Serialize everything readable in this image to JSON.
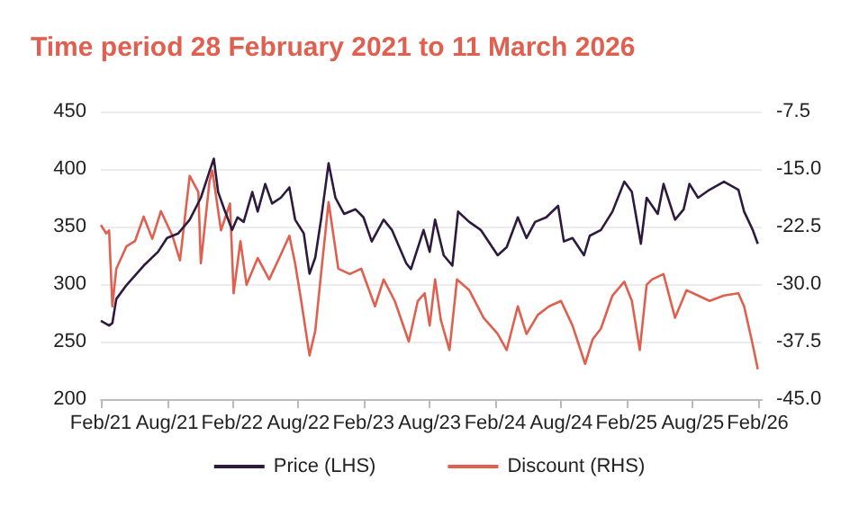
{
  "chart_data": {
    "type": "line",
    "title": "Time period 28 February 2021 to 11 March 2026",
    "xlim": [
      "2021-02-28",
      "2026-03-11"
    ],
    "xticks": [
      {
        "value": "2021-02-28",
        "label": "Feb/21"
      },
      {
        "value": "2021-08-31",
        "label": "Aug/21"
      },
      {
        "value": "2022-02-28",
        "label": "Feb/22"
      },
      {
        "value": "2022-08-31",
        "label": "Aug/22"
      },
      {
        "value": "2023-02-28",
        "label": "Feb/23"
      },
      {
        "value": "2023-08-31",
        "label": "Aug/23"
      },
      {
        "value": "2024-02-29",
        "label": "Feb/24"
      },
      {
        "value": "2024-08-31",
        "label": "Aug/24"
      },
      {
        "value": "2025-02-28",
        "label": "Feb/25"
      },
      {
        "value": "2025-08-31",
        "label": "Aug/25"
      },
      {
        "value": "2026-02-28",
        "label": "Feb/26"
      }
    ],
    "ylim": [
      200,
      450
    ],
    "yticks": [
      200,
      250,
      300,
      350,
      400,
      450
    ],
    "y2lim": [
      -45,
      -7.5
    ],
    "y2ticks": [
      {
        "value": -45,
        "label": "-45.0"
      },
      {
        "value": -37.5,
        "label": "-37.5"
      },
      {
        "value": -30,
        "label": "-30.0"
      },
      {
        "value": -22.5,
        "label": "-22.5"
      },
      {
        "value": -15,
        "label": "-15.0"
      },
      {
        "value": -7.5,
        "label": "-7.5"
      }
    ],
    "grid": "y",
    "legend": "bottom",
    "marker": "none",
    "line_style": "solid",
    "series": [
      {
        "name": "Price (LHS)",
        "color": "#2e1a3e",
        "x": [
          "2021-02-28",
          "2021-03-23",
          "2021-04-01",
          "2021-04-12",
          "2021-05-10",
          "2021-06-27",
          "2021-08-06",
          "2021-08-31",
          "2021-10-01",
          "2021-11-02",
          "2021-12-03",
          "2021-12-27",
          "2022-01-08",
          "2022-01-20",
          "2022-02-06",
          "2022-02-28",
          "2022-03-15",
          "2022-04-01",
          "2022-04-25",
          "2022-05-10",
          "2022-05-31",
          "2022-06-19",
          "2022-07-13",
          "2022-08-06",
          "2022-08-22",
          "2022-09-15",
          "2022-10-01",
          "2022-10-17",
          "2022-11-02",
          "2022-11-23",
          "2022-12-12",
          "2023-01-05",
          "2023-02-06",
          "2023-02-28",
          "2023-03-23",
          "2023-04-25",
          "2023-05-18",
          "2023-06-27",
          "2023-07-10",
          "2023-08-14",
          "2023-08-31",
          "2023-09-15",
          "2023-10-09",
          "2023-11-02",
          "2023-11-18",
          "2023-12-19",
          "2024-01-20",
          "2024-03-07",
          "2024-04-01",
          "2024-05-02",
          "2024-05-26",
          "2024-06-19",
          "2024-07-20",
          "2024-08-22",
          "2024-09-07",
          "2024-10-01",
          "2024-11-02",
          "2024-11-18",
          "2024-12-19",
          "2025-01-20",
          "2025-02-22",
          "2025-03-15",
          "2025-04-09",
          "2025-04-25",
          "2025-05-26",
          "2025-06-11",
          "2025-07-13",
          "2025-08-06",
          "2025-08-22",
          "2025-09-15",
          "2025-10-17",
          "2025-11-26",
          "2026-01-05",
          "2026-01-21",
          "2026-02-14",
          "2026-02-28"
        ],
        "values": [
          268,
          264,
          266,
          287,
          299,
          316,
          328,
          340,
          344,
          356,
          375,
          398,
          409,
          380,
          365,
          347,
          358,
          354,
          380,
          363,
          387,
          370,
          375,
          384,
          356,
          344,
          309,
          323,
          356,
          405,
          375,
          361,
          365,
          358,
          337,
          356,
          347,
          318,
          313,
          347,
          328,
          356,
          325,
          316,
          363,
          354,
          347,
          325,
          332,
          358,
          340,
          354,
          358,
          368,
          337,
          340,
          325,
          342,
          347,
          363,
          389,
          380,
          335,
          375,
          361,
          387,
          356,
          365,
          387,
          375,
          382,
          389,
          382,
          363,
          347,
          335
        ]
      },
      {
        "name": "Discount (RHS)",
        "color": "#e0604f",
        "axis": "y2",
        "x": [
          "2021-02-28",
          "2021-03-15",
          "2021-03-23",
          "2021-04-01",
          "2021-04-12",
          "2021-05-10",
          "2021-06-03",
          "2021-06-27",
          "2021-07-21",
          "2021-08-14",
          "2021-09-15",
          "2021-10-06",
          "2021-11-02",
          "2021-11-26",
          "2021-12-03",
          "2021-12-27",
          "2022-01-04",
          "2022-01-28",
          "2022-02-22",
          "2022-03-04",
          "2022-03-23",
          "2022-04-09",
          "2022-05-10",
          "2022-06-11",
          "2022-07-13",
          "2022-08-06",
          "2022-08-22",
          "2022-09-07",
          "2022-10-01",
          "2022-10-17",
          "2022-11-02",
          "2022-11-23",
          "2022-12-20",
          "2023-01-21",
          "2023-02-22",
          "2023-04-01",
          "2023-04-25",
          "2023-05-26",
          "2023-07-04",
          "2023-07-29",
          "2023-08-17",
          "2023-08-31",
          "2023-09-15",
          "2023-10-01",
          "2023-10-25",
          "2023-11-15",
          "2023-12-19",
          "2024-01-28",
          "2024-03-07",
          "2024-04-01",
          "2024-05-02",
          "2024-05-26",
          "2024-06-27",
          "2024-07-28",
          "2024-08-30",
          "2024-10-01",
          "2024-11-05",
          "2024-11-26",
          "2024-12-19",
          "2025-01-20",
          "2025-02-22",
          "2025-03-15",
          "2025-04-06",
          "2025-04-25",
          "2025-05-10",
          "2025-06-11",
          "2025-07-13",
          "2025-08-14",
          "2025-09-15",
          "2025-10-17",
          "2025-11-26",
          "2026-01-05",
          "2026-01-21",
          "2026-02-14",
          "2026-02-28"
        ],
        "values": [
          -22.3,
          -23.4,
          -23.0,
          -32.9,
          -28.0,
          -25.1,
          -24.4,
          -21.2,
          -24.1,
          -20.5,
          -23.7,
          -26.9,
          -15.9,
          -18.0,
          -27.3,
          -16.6,
          -15.2,
          -23.0,
          -19.5,
          -31.2,
          -24.4,
          -30.1,
          -26.6,
          -29.4,
          -26.2,
          -23.7,
          -27.3,
          -31.9,
          -39.3,
          -36.1,
          -28.7,
          -19.3,
          -28.0,
          -28.7,
          -28.0,
          -32.9,
          -29.4,
          -32.2,
          -37.5,
          -32.2,
          -31.2,
          -35.4,
          -29.4,
          -34.7,
          -38.6,
          -29.4,
          -30.8,
          -34.4,
          -36.5,
          -38.6,
          -32.9,
          -36.5,
          -34.0,
          -32.9,
          -32.2,
          -35.4,
          -40.4,
          -37.2,
          -35.8,
          -31.5,
          -29.7,
          -32.2,
          -38.6,
          -30.1,
          -29.4,
          -28.7,
          -34.4,
          -30.8,
          -31.5,
          -32.2,
          -31.5,
          -31.2,
          -32.9,
          -37.9,
          -41.1
        ]
      }
    ]
  }
}
